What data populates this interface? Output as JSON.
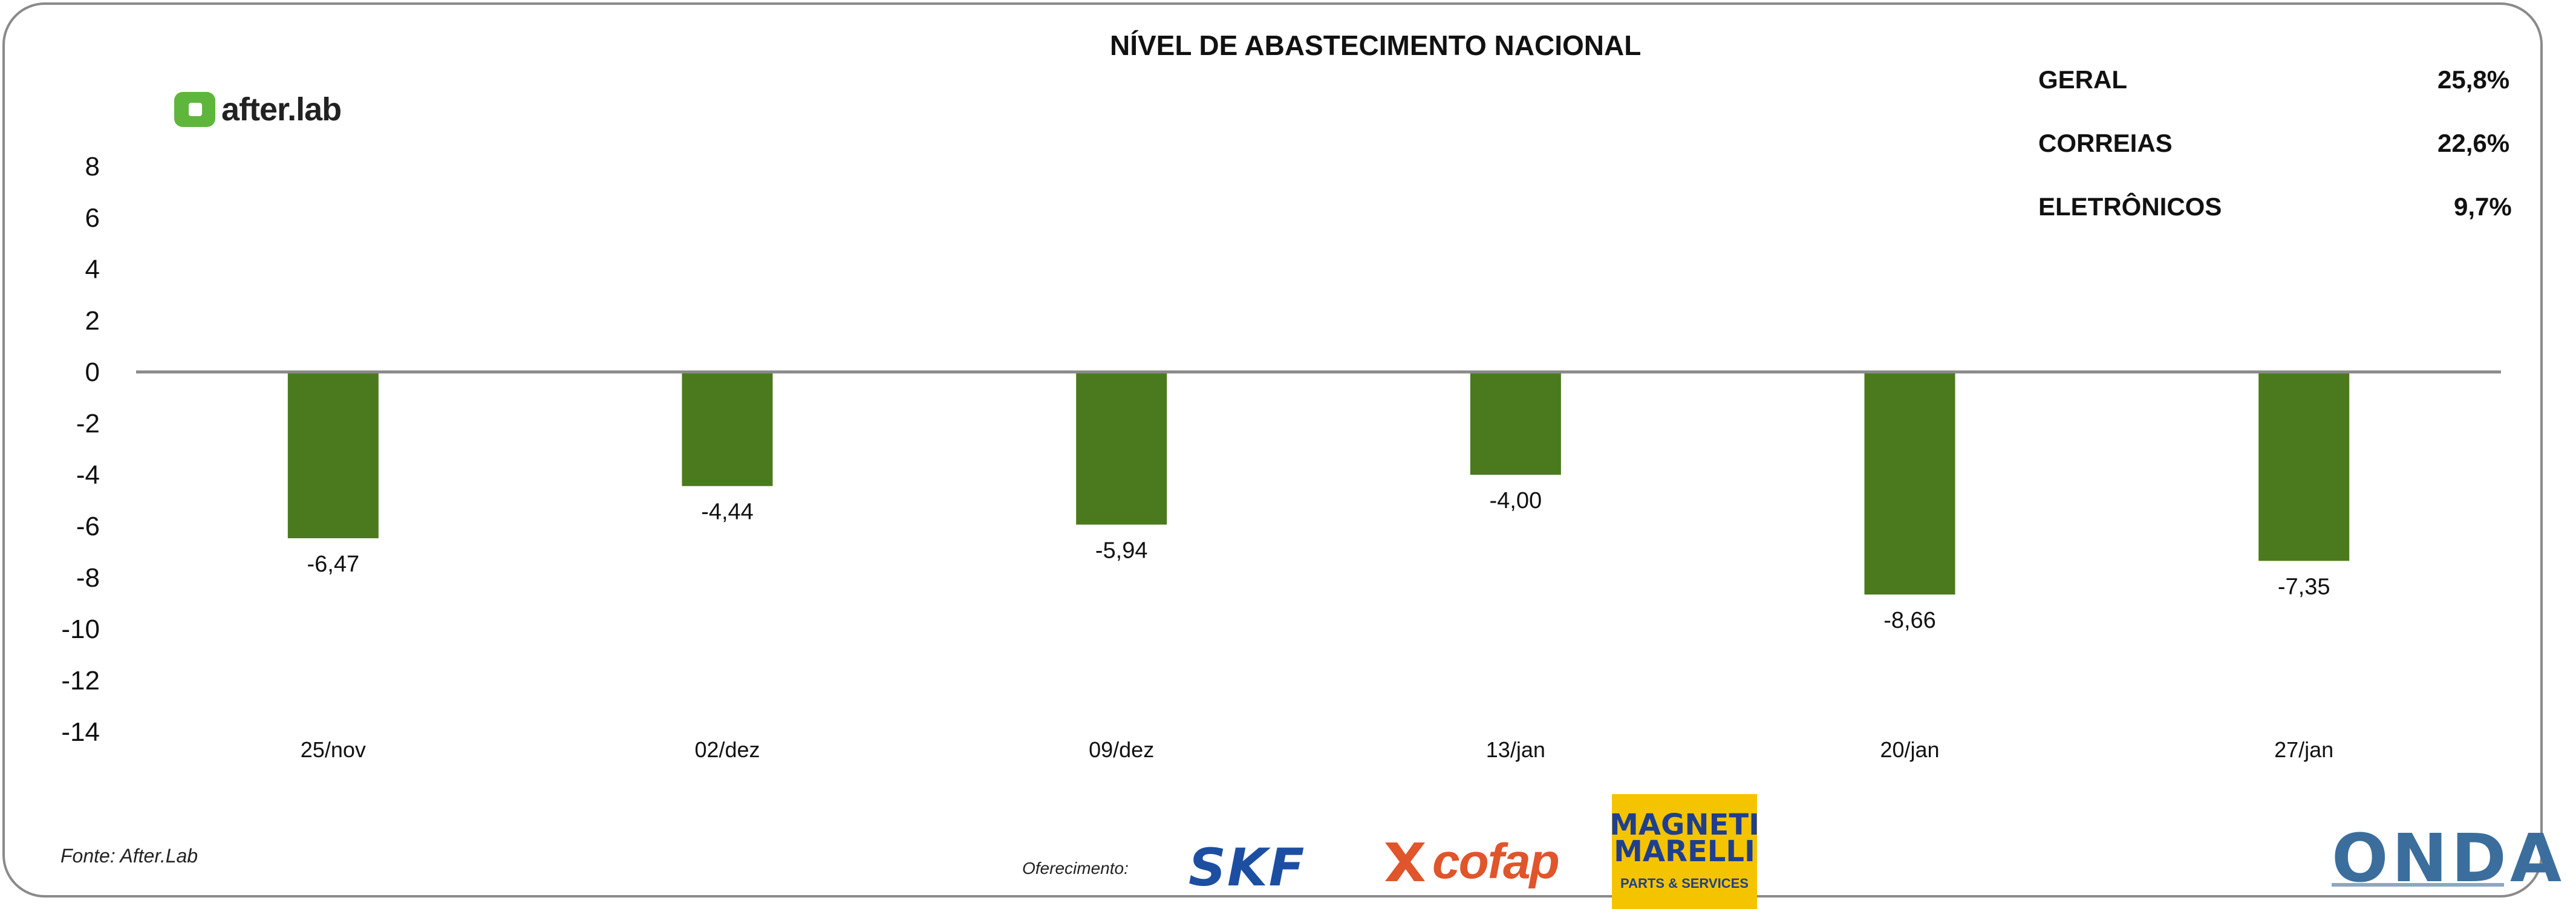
{
  "title": "NÍVEL DE ABASTECIMENTO NACIONAL",
  "logo_text": "after.lab",
  "kpis": [
    {
      "label": "GERAL",
      "value": "25,8%"
    },
    {
      "label": "CORREIAS",
      "value": "22,6%"
    },
    {
      "label": "ELETRÔNICOS",
      "value": "9,7%"
    }
  ],
  "source": "Fonte: After.Lab",
  "sponsor_label": "Oferecimento:",
  "sponsors": {
    "skf": "SKF",
    "cofap": "cofap",
    "magneti_line1": "MAGNETI",
    "magneti_line2": "MARELLI",
    "magneti_sub": "PARTS & SERVICES",
    "onda": "ONDA"
  },
  "colors": {
    "bar": "#4a7a1d",
    "axis": "#8a8a8a",
    "text": "#111111",
    "logo_green": "#5fb63c"
  },
  "chart_data": {
    "type": "bar",
    "title": "NÍVEL DE ABASTECIMENTO NACIONAL",
    "categories": [
      "25/nov",
      "02/dez",
      "09/dez",
      "13/jan",
      "20/jan",
      "27/jan"
    ],
    "values": [
      -6.47,
      -4.44,
      -5.94,
      -4.0,
      -8.66,
      -7.35
    ],
    "value_labels": [
      "-6,47",
      "-4,44",
      "-5,94",
      "-4,00",
      "-8,66",
      "-7,35"
    ],
    "y_ticks": [
      "8",
      "6",
      "4",
      "2",
      "0",
      "-2",
      "-4",
      "-6",
      "-8",
      "-10",
      "-12",
      "-14"
    ],
    "ylim": [
      -14,
      8
    ],
    "xlabel": "",
    "ylabel": "",
    "grid": false,
    "legend": "none"
  }
}
